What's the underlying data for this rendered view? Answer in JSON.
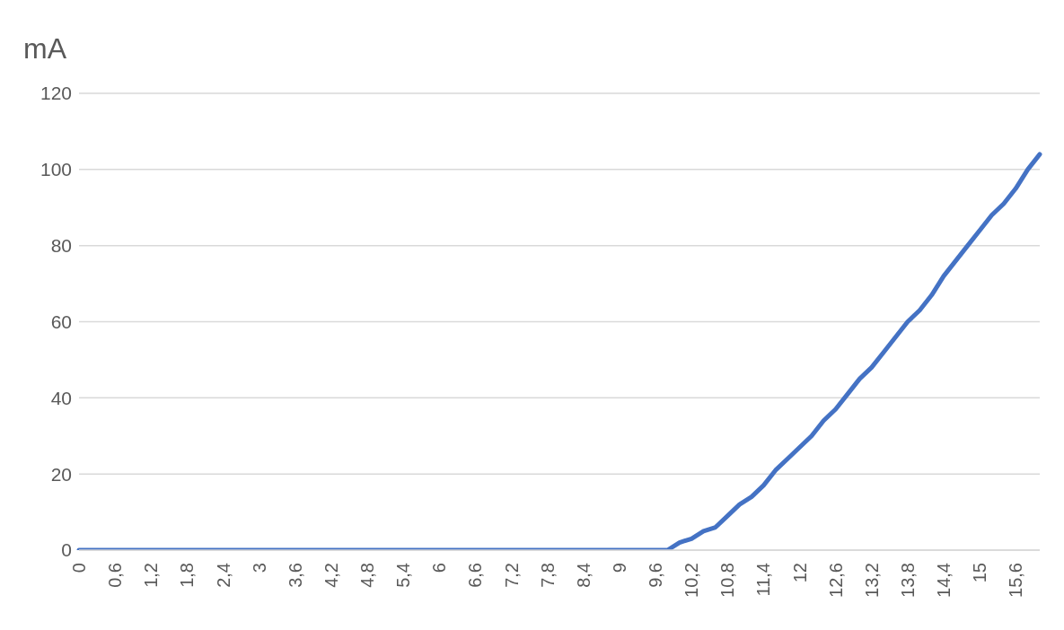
{
  "chart_data": {
    "type": "line",
    "ylabel": "mA",
    "categories": [
      "0",
      null,
      null,
      "0,6",
      null,
      null,
      "1,2",
      null,
      null,
      "1,8",
      null,
      null,
      "2,4",
      null,
      null,
      "3",
      null,
      null,
      "3,6",
      null,
      null,
      "4,2",
      null,
      null,
      "4,8",
      null,
      null,
      "5,4",
      null,
      null,
      "6",
      null,
      null,
      "6,6",
      null,
      null,
      "7,2",
      null,
      null,
      "7,8",
      null,
      null,
      "8,4",
      null,
      null,
      "9",
      null,
      null,
      "9,6",
      null,
      null,
      "10,2",
      null,
      null,
      "10,8",
      null,
      null,
      "11,4",
      null,
      null,
      "12",
      null,
      null,
      "12,6",
      null,
      null,
      "13,2",
      null,
      null,
      "13,8",
      null,
      null,
      "14,4",
      null,
      null,
      "15",
      null,
      null,
      "15,6",
      null,
      null
    ],
    "series": [
      {
        "color": "#4472c4",
        "values": [
          0,
          0,
          0,
          0,
          0,
          0,
          0,
          0,
          0,
          0,
          0,
          0,
          0,
          0,
          0,
          0,
          0,
          0,
          0,
          0,
          0,
          0,
          0,
          0,
          0,
          0,
          0,
          0,
          0,
          0,
          0,
          0,
          0,
          0,
          0,
          0,
          0,
          0,
          0,
          0,
          0,
          0,
          0,
          0,
          0,
          0,
          0,
          0,
          0,
          0,
          2,
          3,
          5,
          6,
          9,
          12,
          14,
          17,
          21,
          24,
          27,
          30,
          34,
          37,
          41,
          45,
          48,
          52,
          56,
          60,
          63,
          67,
          72,
          76,
          80,
          84,
          88,
          91,
          95,
          100,
          104
        ]
      }
    ],
    "ylim": [
      0,
      120
    ],
    "yticks": [
      0,
      20,
      40,
      60,
      80,
      100,
      120
    ],
    "grid": "y",
    "legend": false,
    "marker": "none",
    "line_style": "solid"
  }
}
